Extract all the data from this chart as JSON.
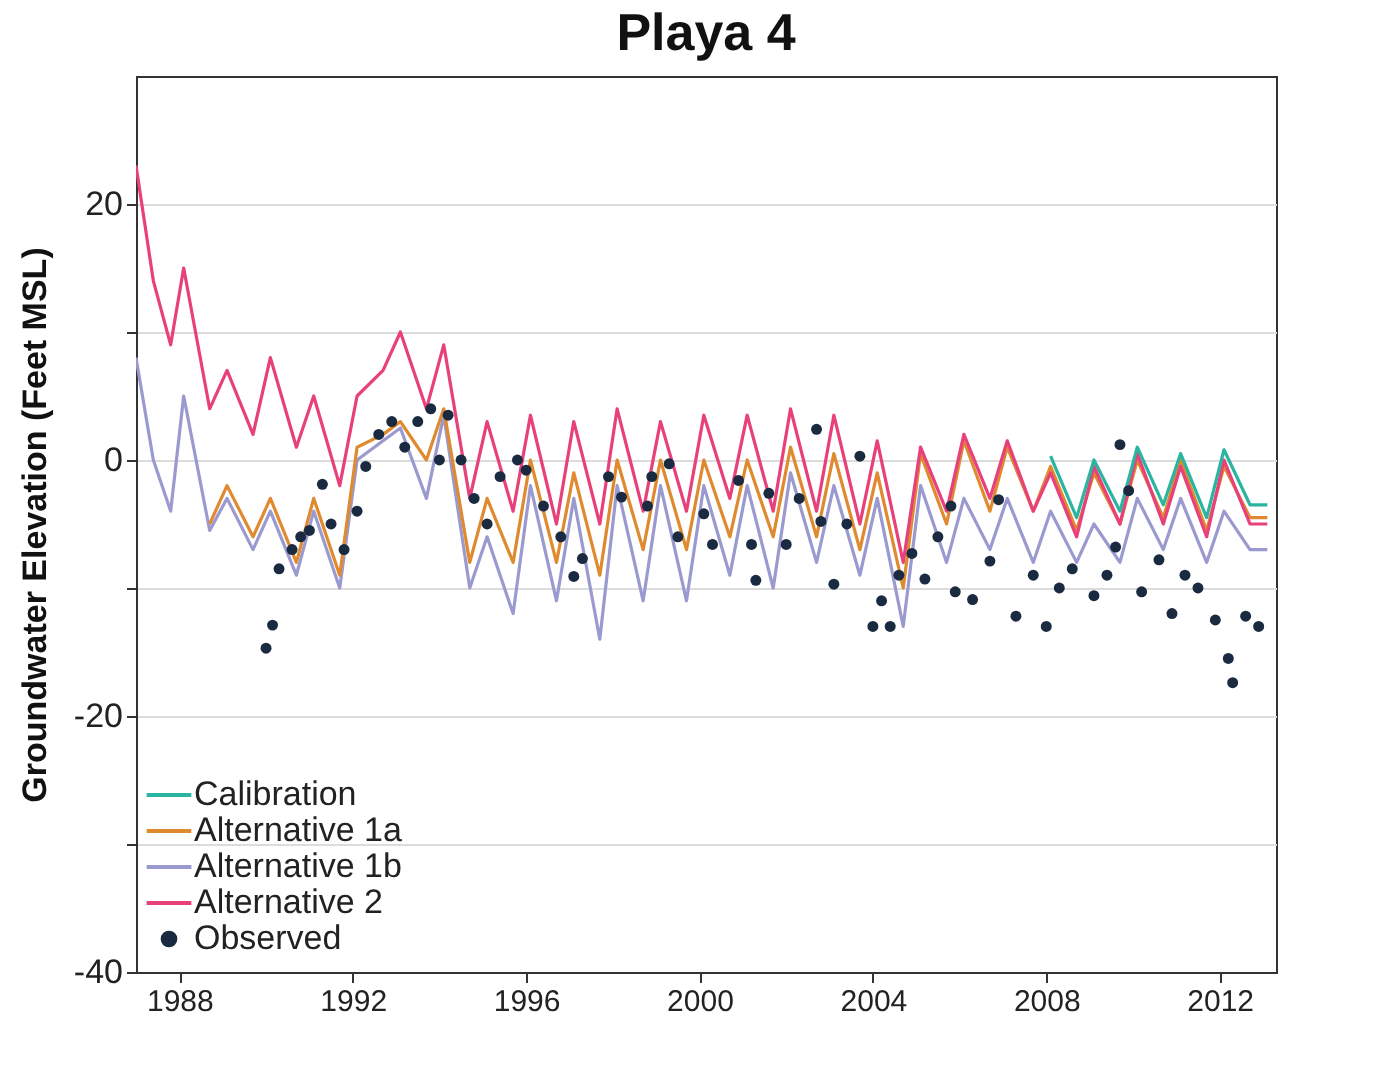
{
  "chart_data": {
    "type": "line",
    "title": "Playa 4",
    "ylabel": "Groundwater Elevation (Feet MSL)",
    "xlim": [
      1987,
      2013.3
    ],
    "xticks": [
      1988,
      1992,
      1996,
      2000,
      2004,
      2008,
      2012
    ],
    "ylim": [
      -40,
      30
    ],
    "yticks": [
      -40,
      {
        "value": -30,
        "label": null
      },
      -20,
      {
        "value": -10,
        "label": null
      },
      0,
      {
        "value": 10,
        "label": null
      },
      20
    ],
    "grid": "y",
    "legend": "bottom left",
    "line_style": "solid",
    "series": [
      {
        "name": "Calibration",
        "color": "#2ab5a0",
        "x": [
          2008.1,
          2008.7,
          2009.1,
          2009.7,
          2010.1,
          2010.7,
          2011.1,
          2011.7,
          2012.1,
          2012.7,
          2013.1
        ],
        "values": [
          0.3,
          -4.5,
          0,
          -4,
          1,
          -3.5,
          0.5,
          -4.5,
          0.8,
          -3.5,
          -3.5
        ]
      },
      {
        "name": "Alternative 1a",
        "color": "#e08a30",
        "x": [
          1988.7,
          1989.1,
          1989.7,
          1990.1,
          1990.7,
          1991.1,
          1991.7,
          1992.1,
          1992.7,
          1993.1,
          1993.7,
          1994.1,
          1994.7,
          1995.1,
          1995.7,
          1996.1,
          1996.7,
          1997.1,
          1997.7,
          1998.1,
          1998.7,
          1999.1,
          1999.7,
          2000.1,
          2000.7,
          2001.1,
          2001.7,
          2002.1,
          2002.7,
          2003.1,
          2003.7,
          2004.1,
          2004.7,
          2005.1,
          2005.7,
          2006.1,
          2006.7,
          2007.1,
          2007.7,
          2008.1,
          2008.7,
          2009.1,
          2009.7,
          2010.1,
          2010.7,
          2011.1,
          2011.7,
          2012.1,
          2012.7,
          2013.1
        ],
        "values": [
          -5,
          -2,
          -6,
          -3,
          -8,
          -3,
          -9,
          1,
          2,
          3,
          0,
          4,
          -8,
          -3,
          -8,
          0,
          -8,
          -1,
          -9,
          0,
          -7,
          0,
          -7,
          0,
          -6,
          0,
          -6,
          1,
          -6,
          0.5,
          -7,
          -1,
          -10,
          0.5,
          -5,
          1.5,
          -4,
          1,
          -4,
          -0.5,
          -5.5,
          -1,
          -5,
          0,
          -4.5,
          0,
          -5.5,
          -0.5,
          -4.5,
          -4.5
        ]
      },
      {
        "name": "Alternative 1b",
        "color": "#9a9ad0",
        "x": [
          1987.0,
          1987.4,
          1987.8,
          1988.1,
          1988.7,
          1989.1,
          1989.7,
          1990.1,
          1990.7,
          1991.1,
          1991.7,
          1992.1,
          1992.7,
          1993.1,
          1993.7,
          1994.1,
          1994.7,
          1995.1,
          1995.7,
          1996.1,
          1996.7,
          1997.1,
          1997.7,
          1998.1,
          1998.7,
          1999.1,
          1999.7,
          2000.1,
          2000.7,
          2001.1,
          2001.7,
          2002.1,
          2002.7,
          2003.1,
          2003.7,
          2004.1,
          2004.7,
          2005.1,
          2005.7,
          2006.1,
          2006.7,
          2007.1,
          2007.7,
          2008.1,
          2008.7,
          2009.1,
          2009.7,
          2010.1,
          2010.7,
          2011.1,
          2011.7,
          2012.1,
          2012.7,
          2013.1
        ],
        "values": [
          8,
          0,
          -4,
          5,
          -5.5,
          -3,
          -7,
          -4,
          -9,
          -4,
          -10,
          0,
          1.5,
          2.5,
          -3,
          3.5,
          -10,
          -6,
          -12,
          -2,
          -11,
          -3,
          -14,
          -2,
          -11,
          -2,
          -11,
          -2,
          -9,
          -2,
          -10,
          -1,
          -8,
          -2,
          -9,
          -3,
          -13,
          -2,
          -8,
          -3,
          -7,
          -3,
          -8,
          -4,
          -8,
          -5,
          -8,
          -3,
          -7,
          -3,
          -8,
          -4,
          -7,
          -7
        ]
      },
      {
        "name": "Alternative 2",
        "color": "#e8407a",
        "x": [
          1987.0,
          1987.4,
          1987.8,
          1988.1,
          1988.7,
          1989.1,
          1989.7,
          1990.1,
          1990.7,
          1991.1,
          1991.7,
          1992.1,
          1992.7,
          1993.1,
          1993.7,
          1994.1,
          1994.7,
          1995.1,
          1995.7,
          1996.1,
          1996.7,
          1997.1,
          1997.7,
          1998.1,
          1998.7,
          1999.1,
          1999.7,
          2000.1,
          2000.7,
          2001.1,
          2001.7,
          2002.1,
          2002.7,
          2003.1,
          2003.7,
          2004.1,
          2004.7,
          2005.1,
          2005.7,
          2006.1,
          2006.7,
          2007.1,
          2007.7,
          2008.1,
          2008.7,
          2009.1,
          2009.7,
          2010.1,
          2010.7,
          2011.1,
          2011.7,
          2012.1,
          2012.7,
          2013.1
        ],
        "values": [
          23,
          14,
          9,
          15,
          4,
          7,
          2,
          8,
          1,
          5,
          -2,
          5,
          7,
          10,
          4,
          9,
          -3,
          3,
          -4,
          3.5,
          -5,
          3,
          -5,
          4,
          -4,
          3,
          -4,
          3.5,
          -3,
          3.5,
          -4,
          4,
          -4,
          3.5,
          -5,
          1.5,
          -8,
          1,
          -4,
          2,
          -3,
          1.5,
          -4,
          -1,
          -6,
          -0.5,
          -5,
          0.5,
          -5,
          -0.5,
          -6,
          0,
          -5,
          -5
        ]
      },
      {
        "name": "Observed",
        "color": "#1a2a40",
        "type": "scatter",
        "marker": "circle",
        "x": [
          1990.0,
          1990.15,
          1990.3,
          1990.6,
          1990.8,
          1991.0,
          1991.3,
          1991.5,
          1991.8,
          1992.1,
          1992.3,
          1992.6,
          1992.9,
          1993.2,
          1993.5,
          1993.8,
          1994.0,
          1994.2,
          1994.5,
          1994.8,
          1995.1,
          1995.4,
          1995.8,
          1996.0,
          1996.4,
          1996.8,
          1997.1,
          1997.3,
          1997.9,
          1998.2,
          1998.8,
          1998.9,
          1999.3,
          1999.5,
          2000.1,
          2000.3,
          2000.9,
          2001.2,
          2001.3,
          2001.6,
          2002.0,
          2002.3,
          2002.7,
          2002.8,
          2003.1,
          2003.4,
          2003.7,
          2004.0,
          2004.2,
          2004.4,
          2004.6,
          2004.9,
          2005.2,
          2005.5,
          2005.8,
          2005.9,
          2006.3,
          2006.7,
          2006.9,
          2007.3,
          2007.7,
          2008.0,
          2008.3,
          2008.6,
          2009.1,
          2009.4,
          2009.6,
          2009.7,
          2009.9,
          2010.2,
          2010.6,
          2010.9,
          2011.2,
          2011.5,
          2011.9,
          2012.2,
          2012.3,
          2012.6,
          2012.9
        ],
        "values": [
          -14.7,
          -12.9,
          -8.5,
          -7,
          -6,
          -5.5,
          -1.9,
          -5,
          -7,
          -4,
          -0.5,
          2,
          3,
          1,
          3,
          4,
          0,
          3.5,
          0,
          -3,
          -5,
          -1.3,
          0,
          -0.8,
          -3.6,
          -6,
          -9.1,
          -7.7,
          -1.3,
          -2.9,
          -3.6,
          -1.3,
          -0.3,
          -6,
          -4.2,
          -6.6,
          -1.6,
          -6.6,
          -9.4,
          -2.6,
          -6.6,
          -3,
          2.4,
          -4.8,
          -9.7,
          -5,
          0.3,
          -13,
          -11,
          -13,
          -9,
          -7.3,
          -9.3,
          -6,
          -3.6,
          -10.3,
          -10.9,
          -7.9,
          -3.1,
          -12.2,
          -9,
          -13,
          -10,
          -8.5,
          -10.6,
          -9,
          -6.8,
          1.2,
          -2.4,
          -10.3,
          -7.8,
          -12,
          -9,
          -10,
          -12.5,
          -15.5,
          -17.4,
          -12.2,
          -13
        ]
      }
    ]
  }
}
